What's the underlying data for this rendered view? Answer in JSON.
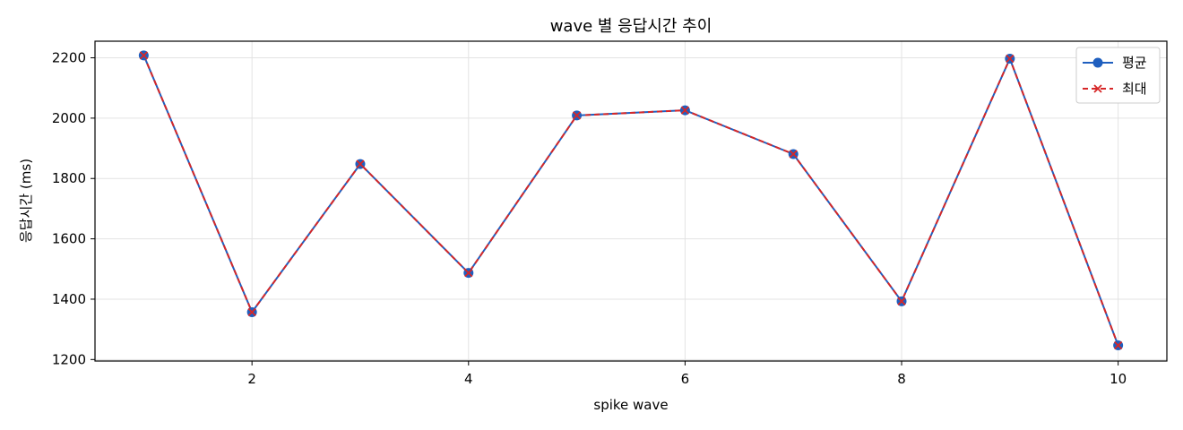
{
  "chart_data": {
    "type": "line",
    "title": "wave 별 응답시간 추이",
    "xlabel": "spike wave",
    "ylabel": "응답시간 (ms)",
    "x": [
      1,
      2,
      3,
      4,
      5,
      6,
      7,
      8,
      9,
      10
    ],
    "xlim": [
      0.55,
      10.45
    ],
    "ylim": [
      1195,
      2255
    ],
    "xticks": [
      2,
      4,
      6,
      8,
      10
    ],
    "yticks": [
      1200,
      1400,
      1600,
      1800,
      2000,
      2200
    ],
    "grid": true,
    "legend_position": "top-right",
    "series": [
      {
        "name": "평균",
        "color": "#1f5fbf",
        "marker": "circle",
        "line_style": "solid",
        "values": [
          2208,
          1357,
          1848,
          1487,
          2009,
          2026,
          1881,
          1393,
          2197,
          1247
        ]
      },
      {
        "name": "최대",
        "color": "#d62728",
        "marker": "x",
        "line_style": "dashed",
        "values": [
          2208,
          1357,
          1848,
          1487,
          2009,
          2026,
          1881,
          1393,
          2197,
          1247
        ]
      }
    ]
  }
}
